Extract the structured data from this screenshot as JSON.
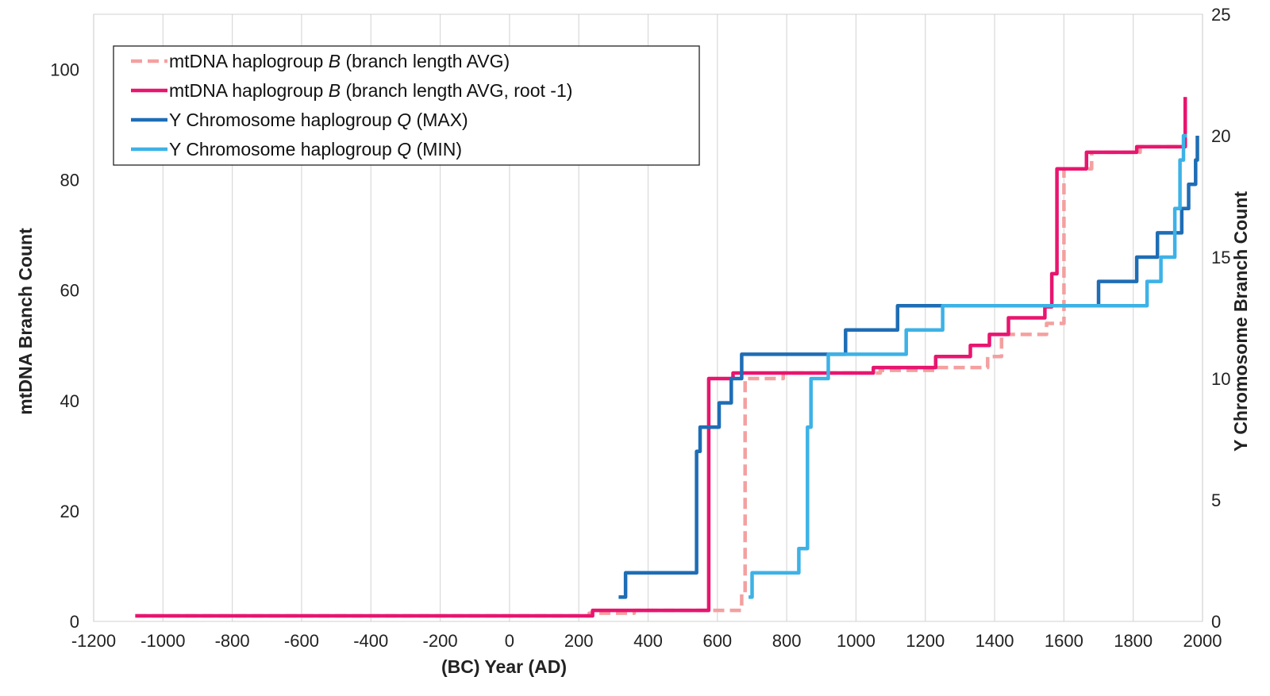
{
  "chart_data": {
    "type": "line",
    "title": "",
    "xlabel": "(BC) Year (AD)",
    "ylabel": "mtDNA Branch Count",
    "y2label": "Y Chromosome Branch Count",
    "xlim": [
      -1200,
      2000
    ],
    "ylim": [
      0,
      110
    ],
    "y2lim": [
      0,
      25
    ],
    "x_ticks": [
      -1200,
      -1000,
      -800,
      -600,
      -400,
      -200,
      0,
      200,
      400,
      600,
      800,
      1000,
      1200,
      1400,
      1600,
      1800,
      2000
    ],
    "y_ticks": [
      0,
      20,
      40,
      60,
      80,
      100
    ],
    "y2_ticks": [
      0,
      5,
      10,
      15,
      20,
      25
    ],
    "grid": "vertical",
    "legend_position": "top-left",
    "series": [
      {
        "name_parts": [
          "mtDNA haplogroup ",
          "B",
          " (branch length AVG)"
        ],
        "axis": "left",
        "color": "#f4a0a0",
        "style": "dashed",
        "points": [
          [
            -1080,
            1
          ],
          [
            230,
            1
          ],
          [
            230,
            1.5
          ],
          [
            360,
            1.5
          ],
          [
            360,
            2
          ],
          [
            580,
            2
          ],
          [
            580,
            2
          ],
          [
            670,
            2
          ],
          [
            670,
            5
          ],
          [
            680,
            5
          ],
          [
            680,
            44
          ],
          [
            790,
            44
          ],
          [
            790,
            45
          ],
          [
            1070,
            45
          ],
          [
            1070,
            45.5
          ],
          [
            1230,
            45.5
          ],
          [
            1230,
            46
          ],
          [
            1380,
            46
          ],
          [
            1380,
            48
          ],
          [
            1420,
            48
          ],
          [
            1420,
            52
          ],
          [
            1550,
            52
          ],
          [
            1550,
            54
          ],
          [
            1600,
            54
          ],
          [
            1600,
            82
          ],
          [
            1680,
            82
          ],
          [
            1680,
            85
          ],
          [
            1820,
            85
          ],
          [
            1820,
            86
          ],
          [
            1950,
            86
          ],
          [
            1950,
            95
          ]
        ]
      },
      {
        "name_parts": [
          "mtDNA haplogroup ",
          "B",
          " (branch length AVG, root -1)"
        ],
        "axis": "left",
        "color": "#e8156f",
        "style": "solid",
        "points": [
          [
            -1080,
            1
          ],
          [
            240,
            1
          ],
          [
            240,
            2
          ],
          [
            575,
            2
          ],
          [
            575,
            44
          ],
          [
            645,
            44
          ],
          [
            645,
            45
          ],
          [
            1050,
            45
          ],
          [
            1050,
            46
          ],
          [
            1230,
            46
          ],
          [
            1230,
            48
          ],
          [
            1330,
            48
          ],
          [
            1330,
            50
          ],
          [
            1385,
            50
          ],
          [
            1385,
            52
          ],
          [
            1440,
            52
          ],
          [
            1440,
            55
          ],
          [
            1545,
            55
          ],
          [
            1545,
            57
          ],
          [
            1565,
            57
          ],
          [
            1565,
            63
          ],
          [
            1580,
            63
          ],
          [
            1580,
            82
          ],
          [
            1665,
            82
          ],
          [
            1665,
            85
          ],
          [
            1810,
            85
          ],
          [
            1810,
            86
          ],
          [
            1950,
            86
          ],
          [
            1950,
            95
          ]
        ]
      },
      {
        "name_parts": [
          "Y Chromosome haplogroup ",
          "Q",
          " (MAX)"
        ],
        "axis": "right",
        "color": "#1e6db5",
        "style": "solid",
        "points": [
          [
            315,
            1
          ],
          [
            335,
            1
          ],
          [
            335,
            2
          ],
          [
            540,
            2
          ],
          [
            540,
            7
          ],
          [
            550,
            7
          ],
          [
            550,
            8
          ],
          [
            605,
            8
          ],
          [
            605,
            9
          ],
          [
            640,
            9
          ],
          [
            640,
            10
          ],
          [
            670,
            10
          ],
          [
            670,
            11
          ],
          [
            970,
            11
          ],
          [
            970,
            12
          ],
          [
            1120,
            12
          ],
          [
            1120,
            13
          ],
          [
            1700,
            13
          ],
          [
            1700,
            14
          ],
          [
            1810,
            14
          ],
          [
            1810,
            15
          ],
          [
            1870,
            15
          ],
          [
            1870,
            16
          ],
          [
            1940,
            16
          ],
          [
            1940,
            17
          ],
          [
            1960,
            17
          ],
          [
            1960,
            18
          ],
          [
            1980,
            18
          ],
          [
            1980,
            19
          ],
          [
            1985,
            19
          ],
          [
            1985,
            20
          ]
        ]
      },
      {
        "name_parts": [
          "Y Chromosome haplogroup ",
          "Q",
          " (MIN)"
        ],
        "axis": "right",
        "color": "#3db2e6",
        "style": "solid",
        "points": [
          [
            690,
            1
          ],
          [
            700,
            1
          ],
          [
            700,
            2
          ],
          [
            835,
            2
          ],
          [
            835,
            3
          ],
          [
            860,
            3
          ],
          [
            860,
            8
          ],
          [
            870,
            8
          ],
          [
            870,
            10
          ],
          [
            920,
            10
          ],
          [
            920,
            11
          ],
          [
            1145,
            11
          ],
          [
            1145,
            12
          ],
          [
            1250,
            12
          ],
          [
            1250,
            13
          ],
          [
            1840,
            13
          ],
          [
            1840,
            14
          ],
          [
            1880,
            14
          ],
          [
            1880,
            15
          ],
          [
            1920,
            15
          ],
          [
            1920,
            17
          ],
          [
            1935,
            17
          ],
          [
            1935,
            19
          ],
          [
            1945,
            19
          ],
          [
            1945,
            20
          ],
          [
            1955,
            20
          ]
        ]
      }
    ]
  }
}
